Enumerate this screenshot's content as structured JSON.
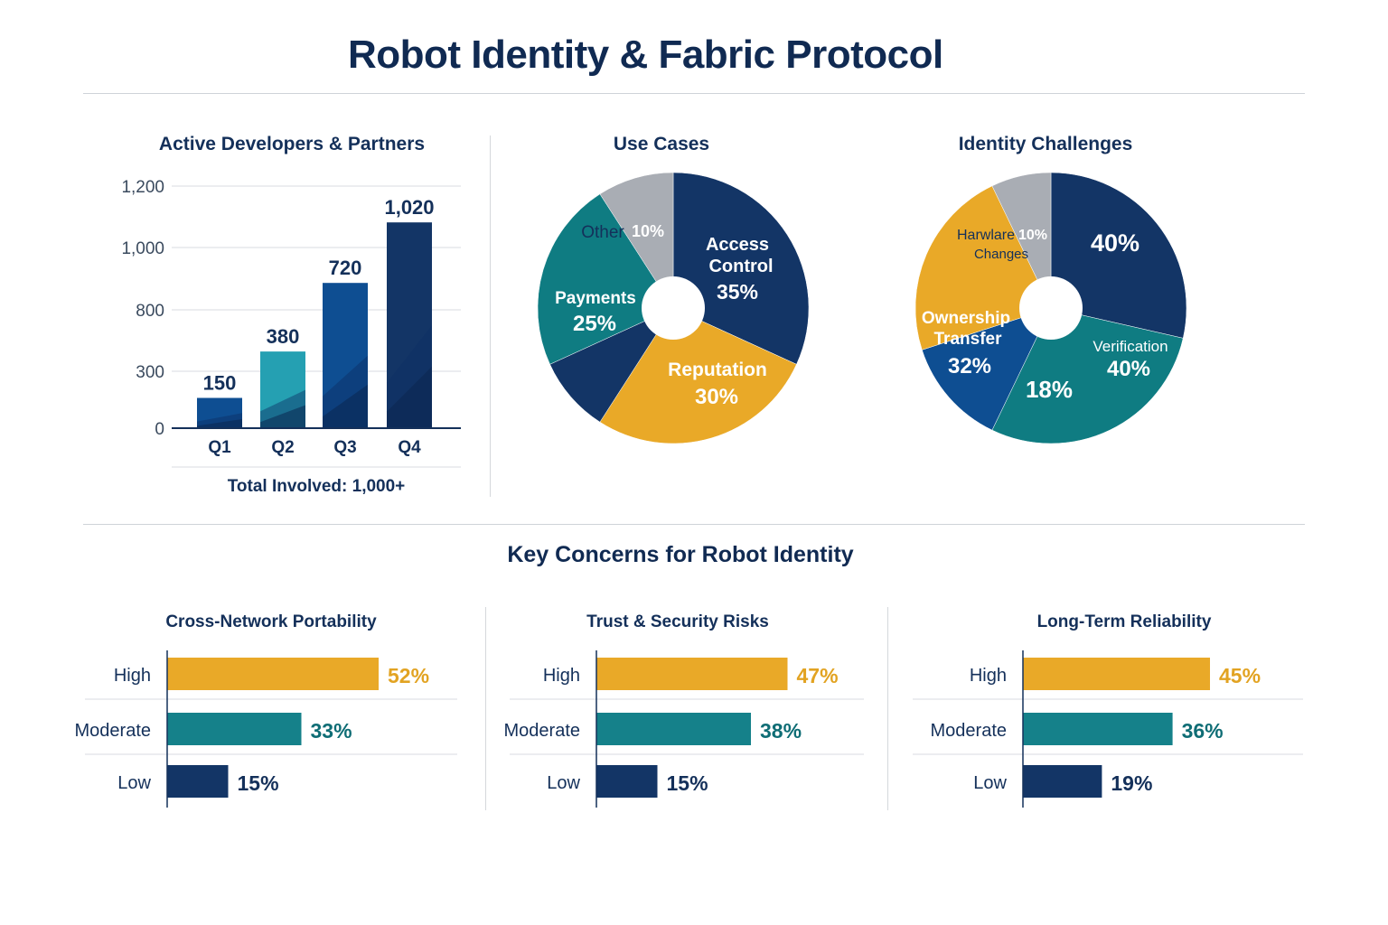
{
  "title": "Robot Identity & Fabric Protocol",
  "colors": {
    "navy": "#133566",
    "blue": "#0e4e92",
    "teal": "#0f7c82",
    "light_teal": "#25a0b2",
    "gold": "#e9a928",
    "gray": "#a9adb4"
  },
  "chart_data": [
    {
      "type": "bar",
      "title": "Active Developers & Partners",
      "categories": [
        "Q1",
        "Q2",
        "Q3",
        "Q4"
      ],
      "values": [
        150,
        380,
        720,
        1020
      ],
      "data_labels": [
        "150",
        "380",
        "720",
        "1,020"
      ],
      "y_ticks": [
        "0",
        "300",
        "800",
        "1,000",
        "1,200"
      ],
      "bar_colors": [
        "#0e4e92",
        "#25a0b2",
        "#0e4e92",
        "#133566"
      ],
      "grid": true,
      "footer": "Total Involved: 1,000+"
    },
    {
      "type": "pie",
      "title": "Use Cases",
      "slices": [
        {
          "label": "Access Control",
          "value": 35,
          "display": "35%",
          "color": "#133566"
        },
        {
          "label": "Reputation",
          "value": 30,
          "display": "30%",
          "color": "#e9a928"
        },
        {
          "label": "",
          "value": 10,
          "display": "",
          "color": "#133566"
        },
        {
          "label": "Payments",
          "value": 25,
          "display": "25%",
          "color": "#0f7c82"
        },
        {
          "label": "Other",
          "value": 10,
          "display": "10%",
          "color": "#a9adb4"
        }
      ]
    },
    {
      "type": "pie",
      "title": "Identity Challenges",
      "slices": [
        {
          "label": "",
          "value": 40,
          "display": "40%",
          "color": "#133566"
        },
        {
          "label": "Verification",
          "value": 40,
          "display": "40%",
          "color": "#0f7c82"
        },
        {
          "label": "",
          "value": 18,
          "display": "18%",
          "color": "#0e4e92"
        },
        {
          "label": "Ownership Transfer",
          "value": 32,
          "display": "32%",
          "color": "#e9a928"
        },
        {
          "label": "Harwlare Changes",
          "value": 10,
          "display": "10%",
          "color": "#a9adb4"
        }
      ]
    },
    {
      "type": "bar",
      "orientation": "horizontal",
      "title": "Cross-Network Portability",
      "categories": [
        "High",
        "Moderate",
        "Low"
      ],
      "values": [
        52,
        33,
        15
      ],
      "display": [
        "52%",
        "33%",
        "15%"
      ]
    },
    {
      "type": "bar",
      "orientation": "horizontal",
      "title": "Trust & Security Risks",
      "categories": [
        "High",
        "Moderate",
        "Low"
      ],
      "values": [
        47,
        38,
        15
      ],
      "display": [
        "47%",
        "38%",
        "15%"
      ]
    },
    {
      "type": "bar",
      "orientation": "horizontal",
      "title": "Long-Term Reliability",
      "categories": [
        "High",
        "Moderate",
        "Low"
      ],
      "values": [
        45,
        36,
        19
      ],
      "display": [
        "45%",
        "36%",
        "19%"
      ]
    }
  ],
  "section_title": "Key Concerns for Robot Identity"
}
